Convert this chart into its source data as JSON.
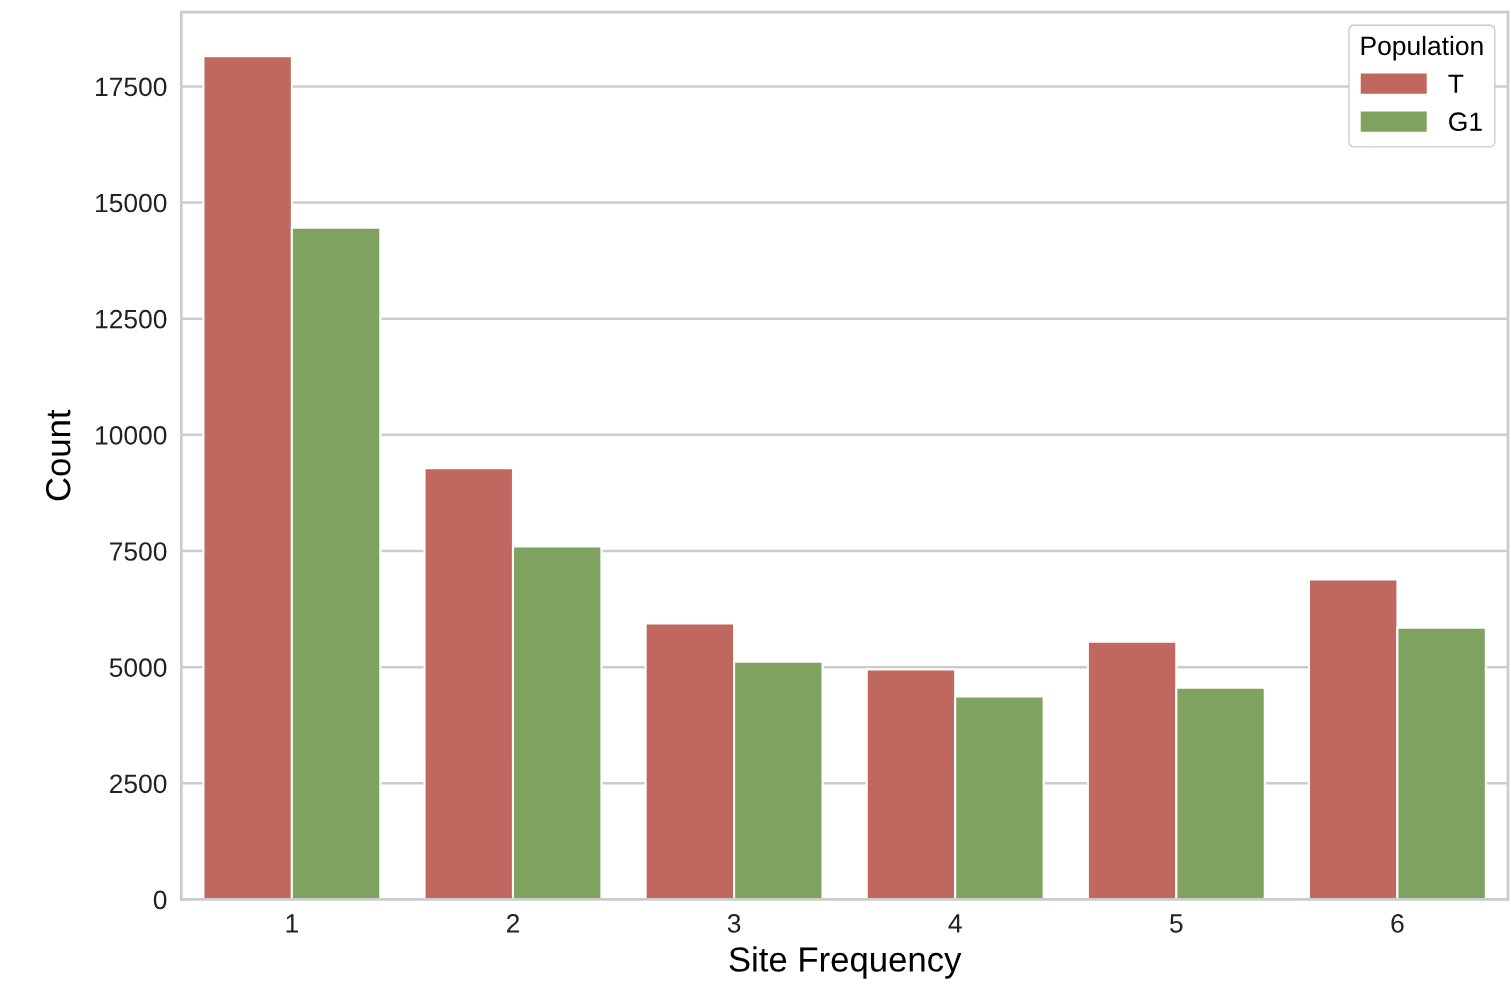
{
  "chart_data": {
    "type": "bar",
    "xlabel": "Site Frequency",
    "ylabel": "Count",
    "legend_title": "Population",
    "categories": [
      "1",
      "2",
      "3",
      "4",
      "5",
      "6"
    ],
    "series": [
      {
        "name": "T",
        "color": "#c0675f",
        "values": [
          18150,
          9280,
          5940,
          4950,
          5550,
          6890
        ]
      },
      {
        "name": "G1",
        "color": "#7fa35f",
        "values": [
          14460,
          7600,
          5120,
          4370,
          4560,
          5850
        ]
      }
    ],
    "ylim": [
      0,
      19100
    ],
    "yticks": [
      0,
      2500,
      5000,
      7500,
      10000,
      12500,
      15000,
      17500
    ],
    "grid": "y",
    "legend": "top right"
  }
}
